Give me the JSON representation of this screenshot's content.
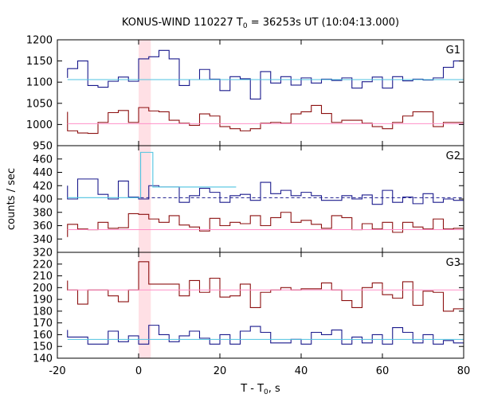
{
  "title": {
    "prefix": "KONUS-WIND 110227 T",
    "sub": "0",
    "suffix": " = 36253s UT (10:04:13.000)"
  },
  "xlabel": {
    "prefix": "T - T",
    "sub": "0",
    "suffix": ", s"
  },
  "ylabel": "counts / sec",
  "colors": {
    "blue": "#1a1a8c",
    "red": "#8c1010",
    "cyan": "#4fc3e0",
    "pink": "#ff8fc8",
    "band": "#ffd6dc"
  },
  "chart_data": {
    "type": "line",
    "step": true,
    "shared_x": {
      "range": [
        -20,
        80
      ],
      "ticks": [
        -20,
        0,
        20,
        40,
        60,
        80
      ]
    },
    "highlight_band": [
      0,
      3
    ],
    "panels": [
      {
        "label": "G1",
        "ylim": [
          950,
          1200
        ],
        "yticks": [
          950,
          1000,
          1050,
          1100,
          1150,
          1200
        ],
        "series": [
          {
            "color": "blue",
            "x": [
              -17.5,
              -15,
              -12.5,
              -10,
              -7.5,
              -5,
              -2.5,
              0,
              2.5,
              5,
              7.5,
              10,
              12.5,
              15,
              17.5,
              20,
              22.5,
              25,
              27.5,
              30,
              32.5,
              35,
              37.5,
              40,
              42.5,
              45,
              47.5,
              50,
              52.5,
              55,
              57.5,
              60,
              62.5,
              65,
              67.5,
              70,
              72.5,
              75,
              77.5,
              80
            ],
            "y": [
              1110,
              1132,
              1150,
              1092,
              1088,
              1102,
              1112,
              1102,
              1155,
              1160,
              1175,
              1155,
              1092,
              1106,
              1130,
              1107,
              1080,
              1113,
              1108,
              1060,
              1125,
              1098,
              1113,
              1093,
              1110,
              1098,
              1107,
              1104,
              1110,
              1086,
              1101,
              1112,
              1086,
              1113,
              1103,
              1107,
              1105,
              1110,
              1135,
              1150
            ]
          },
          {
            "color": "red",
            "x": [
              -17.5,
              -15,
              -12.5,
              -10,
              -7.5,
              -5,
              -2.5,
              0,
              2.5,
              5,
              7.5,
              10,
              12.5,
              15,
              17.5,
              20,
              22.5,
              25,
              27.5,
              30,
              32.5,
              35,
              37.5,
              40,
              42.5,
              45,
              47.5,
              50,
              52.5,
              55,
              57.5,
              60,
              62.5,
              65,
              67.5,
              70,
              72.5,
              75,
              77.5,
              80
            ],
            "y": [
              1030,
              985,
              980,
              979,
              1005,
              1028,
              1033,
              1005,
              1040,
              1032,
              1030,
              1010,
              1003,
              998,
              1025,
              1020,
              995,
              990,
              985,
              990,
              1003,
              1005,
              1003,
              1025,
              1030,
              1045,
              1026,
              1005,
              1010,
              1010,
              1003,
              995,
              990,
              1005,
              1020,
              1030,
              1030,
              995,
              1005,
              1005
            ]
          },
          {
            "color": "cyan",
            "y_const": 1106,
            "x_range": [
              -17.5,
              80
            ]
          },
          {
            "color": "pink",
            "y_const": 1002,
            "x_range": [
              -17.5,
              80
            ]
          }
        ]
      },
      {
        "label": "G2",
        "ylim": [
          320,
          480
        ],
        "yticks": [
          320,
          340,
          360,
          380,
          400,
          420,
          440,
          460
        ],
        "series": [
          {
            "color": "blue",
            "x": [
              -17.5,
              -15,
              -12.5,
              -10,
              -7.5,
              -5,
              -2.5,
              0,
              2.5,
              5,
              7.5,
              10,
              12.5,
              15,
              17.5,
              20,
              22.5,
              25,
              27.5,
              30,
              32.5,
              35,
              37.5,
              40,
              42.5,
              45,
              47.5,
              50,
              52.5,
              55,
              57.5,
              60,
              62.5,
              65,
              67.5,
              70,
              72.5,
              75,
              77.5,
              80
            ],
            "y": [
              420,
              400,
              430,
              430,
              407,
              400,
              427,
              403,
              400,
              420,
              418,
              418,
              395,
              405,
              416,
              410,
              395,
              405,
              407,
              398,
              425,
              408,
              413,
              405,
              410,
              405,
              398,
              398,
              405,
              400,
              406,
              392,
              413,
              395,
              403,
              393,
              408,
              395,
              400,
              398
            ]
          },
          {
            "color": "red",
            "x": [
              -17.5,
              -15,
              -12.5,
              -10,
              -7.5,
              -5,
              -2.5,
              0,
              2.5,
              5,
              7.5,
              10,
              12.5,
              15,
              17.5,
              20,
              22.5,
              25,
              27.5,
              30,
              32.5,
              35,
              37.5,
              40,
              42.5,
              45,
              47.5,
              50,
              52.5,
              55,
              57.5,
              60,
              62.5,
              65,
              67.5,
              70,
              72.5,
              75,
              77.5,
              80
            ],
            "y": [
              343,
              362,
              355,
              354,
              365,
              356,
              357,
              378,
              377,
              370,
              365,
              375,
              361,
              358,
              352,
              371,
              360,
              365,
              363,
              375,
              360,
              372,
              380,
              365,
              368,
              362,
              356,
              375,
              372,
              354,
              363,
              355,
              365,
              350,
              365,
              358,
              355,
              370,
              355,
              356
            ]
          },
          {
            "color": "cyan",
            "segments": [
              {
                "x_range": [
                  -17.5,
                  0.5
                ],
                "y": 402
              },
              {
                "x_range": [
                  0.5,
                  3.5
                ],
                "y": 470
              },
              {
                "x_range": [
                  3.5,
                  24
                ],
                "y": 418
              }
            ]
          },
          {
            "color": "blue",
            "dashed": true,
            "y_const": 402,
            "x_range": [
              0.5,
              80
            ]
          },
          {
            "color": "pink",
            "y_const": 354,
            "x_range": [
              -17.5,
              80
            ]
          }
        ]
      },
      {
        "label": "G3",
        "ylim": [
          140,
          230
        ],
        "yticks": [
          140,
          150,
          160,
          170,
          180,
          190,
          200,
          210,
          220
        ],
        "series": [
          {
            "color": "red",
            "x": [
              -17.5,
              -15,
              -12.5,
              -10,
              -7.5,
              -5,
              -2.5,
              0,
              2.5,
              5,
              7.5,
              10,
              12.5,
              15,
              17.5,
              20,
              22.5,
              25,
              27.5,
              30,
              32.5,
              35,
              37.5,
              40,
              42.5,
              45,
              47.5,
              50,
              52.5,
              55,
              57.5,
              60,
              62.5,
              65,
              67.5,
              70,
              72.5,
              75,
              77.5,
              80
            ],
            "y": [
              206,
              198,
              186,
              198,
              198,
              193,
              188,
              198,
              222,
              203,
              203,
              203,
              193,
              206,
              196,
              208,
              192,
              193,
              203,
              183,
              196,
              198,
              200,
              198,
              199,
              199,
              204,
              198,
              189,
              183,
              200,
              204,
              194,
              191,
              205,
              185,
              197,
              196,
              180,
              182
            ]
          },
          {
            "color": "blue",
            "x": [
              -17.5,
              -15,
              -12.5,
              -10,
              -7.5,
              -5,
              -2.5,
              0,
              2.5,
              5,
              7.5,
              10,
              12.5,
              15,
              17.5,
              20,
              22.5,
              25,
              27.5,
              30,
              32.5,
              35,
              37.5,
              40,
              42.5,
              45,
              47.5,
              50,
              52.5,
              55,
              57.5,
              60,
              62.5,
              65,
              67.5,
              70,
              72.5,
              75,
              77.5,
              80
            ],
            "y": [
              164,
              158,
              158,
              152,
              152,
              163,
              154,
              159,
              152,
              168,
              160,
              154,
              159,
              163,
              157,
              152,
              160,
              152,
              163,
              167,
              162,
              153,
              153,
              156,
              152,
              162,
              160,
              164,
              152,
              158,
              153,
              160,
              152,
              166,
              162,
              153,
              160,
              152,
              155,
              153
            ]
          },
          {
            "color": "pink",
            "y_const": 198,
            "x_range": [
              -17.5,
              80
            ]
          },
          {
            "color": "cyan",
            "y_const": 156,
            "x_range": [
              -17.5,
              80
            ]
          }
        ]
      }
    ]
  }
}
